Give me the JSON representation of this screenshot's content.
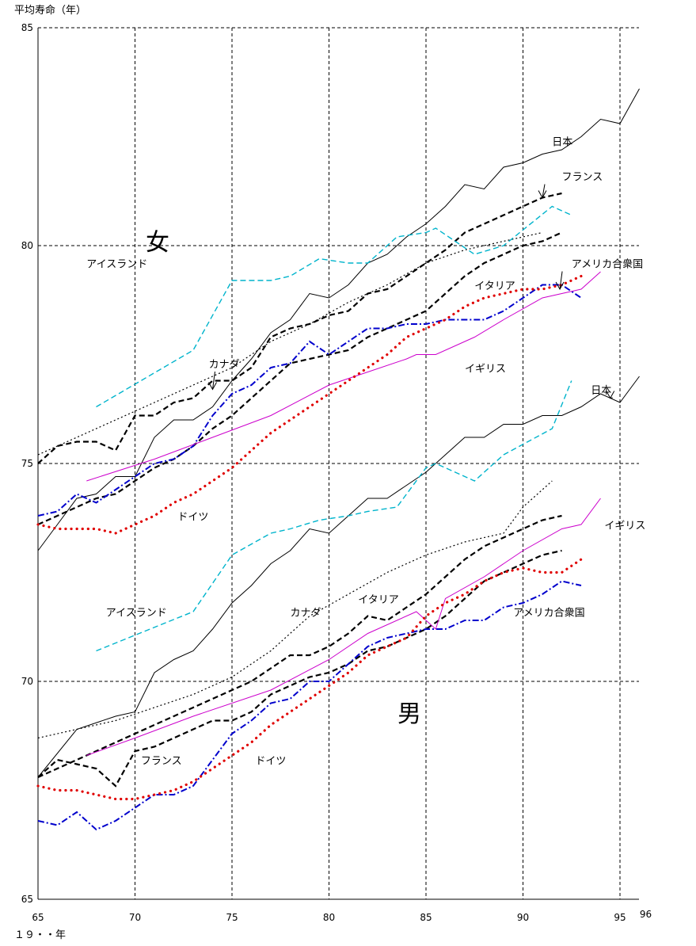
{
  "chart_data": {
    "type": "line",
    "ylabel": "平均寿命（年）",
    "xlabel": "１９・・年",
    "xlim": [
      65,
      96
    ],
    "ylim": [
      65,
      85
    ],
    "x_ticks": [
      "65",
      "70",
      "75",
      "80",
      "85",
      "90",
      "95",
      "96"
    ],
    "y_ticks": [
      "85",
      "80",
      "75",
      "70",
      "65"
    ],
    "group_labels": {
      "female": "女",
      "male": "男"
    },
    "grid": true,
    "colors": {
      "japan": "#000000",
      "france": "#000000",
      "italy": "#000000",
      "canada": "#000000",
      "usa": "#0000cc",
      "uk": "#cc00cc",
      "germany": "#e00000",
      "iceland": "#00b4cc"
    },
    "series": [
      {
        "name": "日本",
        "group": "female",
        "color_key": "japan",
        "dash": "solid",
        "x": [
          65,
          66,
          67,
          68,
          69,
          70,
          71,
          72,
          73,
          74,
          75,
          76,
          77,
          78,
          79,
          80,
          81,
          82,
          83,
          84,
          85,
          86,
          87,
          88,
          89,
          90,
          91,
          92,
          93,
          94,
          95,
          96
        ],
        "y": [
          73.0,
          73.6,
          74.2,
          74.3,
          74.7,
          74.7,
          75.6,
          76.0,
          76.0,
          76.3,
          76.9,
          77.4,
          78.0,
          78.3,
          78.9,
          78.8,
          79.1,
          79.6,
          79.8,
          80.2,
          80.5,
          80.9,
          81.4,
          81.3,
          81.8,
          81.9,
          82.1,
          82.2,
          82.5,
          82.9,
          82.8,
          83.6
        ]
      },
      {
        "name": "フランス",
        "group": "female",
        "color_key": "france",
        "dash": "heavy",
        "x": [
          65,
          66,
          67,
          68,
          69,
          70,
          71,
          72,
          73,
          74,
          75,
          76,
          77,
          78,
          79,
          80,
          81,
          82,
          83,
          84,
          85,
          86,
          87,
          88,
          89,
          90,
          91,
          92
        ],
        "y": [
          75.0,
          75.4,
          75.5,
          75.5,
          75.3,
          76.1,
          76.1,
          76.4,
          76.5,
          76.9,
          76.9,
          77.2,
          77.9,
          78.1,
          78.2,
          78.4,
          78.5,
          78.9,
          79.0,
          79.3,
          79.6,
          79.9,
          80.3,
          80.5,
          80.7,
          80.9,
          81.1,
          81.2
        ]
      },
      {
        "name": "イタリア",
        "group": "female",
        "color_key": "italy",
        "dash": "heavy",
        "x": [
          65,
          66,
          67,
          68,
          69,
          70,
          71,
          72,
          73,
          74,
          75,
          76,
          77,
          78,
          79,
          80,
          81,
          82,
          83,
          84,
          85,
          86,
          87,
          88,
          89,
          90,
          91,
          92
        ],
        "y": [
          73.6,
          73.8,
          74.0,
          74.2,
          74.3,
          74.6,
          74.9,
          75.1,
          75.4,
          75.8,
          76.1,
          76.5,
          76.9,
          77.3,
          77.4,
          77.5,
          77.6,
          77.9,
          78.1,
          78.3,
          78.5,
          78.9,
          79.3,
          79.6,
          79.8,
          80.0,
          80.1,
          80.3
        ]
      },
      {
        "name": "カナダ",
        "group": "female",
        "color_key": "canada",
        "dash": "dotted",
        "x": [
          65,
          67,
          69,
          71,
          73,
          75,
          77,
          79,
          81,
          83,
          85,
          87,
          89,
          91
        ],
        "y": [
          75.2,
          75.6,
          76.0,
          76.4,
          76.8,
          77.2,
          77.8,
          78.2,
          78.7,
          79.1,
          79.6,
          79.9,
          80.1,
          80.3
        ]
      },
      {
        "name": "アメリカ合衆国",
        "group": "female",
        "color_key": "usa",
        "dash": "dashdot",
        "x": [
          65,
          66,
          67,
          68,
          69,
          70,
          71,
          72,
          73,
          74,
          75,
          76,
          77,
          78,
          79,
          80,
          81,
          82,
          83,
          84,
          85,
          86,
          87,
          88,
          89,
          90,
          91,
          92,
          93
        ],
        "y": [
          73.8,
          73.9,
          74.3,
          74.1,
          74.4,
          74.7,
          75.0,
          75.1,
          75.4,
          76.1,
          76.6,
          76.8,
          77.2,
          77.3,
          77.8,
          77.5,
          77.8,
          78.1,
          78.1,
          78.2,
          78.2,
          78.3,
          78.3,
          78.3,
          78.5,
          78.8,
          79.1,
          79.1,
          78.8
        ]
      },
      {
        "name": "イギリス",
        "group": "female",
        "color_key": "uk",
        "dash": "solid",
        "x": [
          67.5,
          71,
          74,
          77,
          80,
          82,
          84,
          84.5,
          85.5,
          86.5,
          87.5,
          89,
          91,
          93,
          94
        ],
        "y": [
          74.6,
          75.1,
          75.6,
          76.1,
          76.8,
          77.1,
          77.4,
          77.5,
          77.5,
          77.7,
          77.9,
          78.3,
          78.8,
          79.0,
          79.4
        ]
      },
      {
        "name": "ドイツ",
        "group": "female",
        "color_key": "germany",
        "dash": "dotted-heavy",
        "x": [
          65,
          66,
          67,
          68,
          69,
          70,
          71,
          72,
          73,
          74,
          75,
          76,
          77,
          78,
          79,
          80,
          81,
          82,
          83,
          84,
          85,
          86,
          87,
          88,
          89,
          90,
          91,
          92,
          93
        ],
        "y": [
          73.6,
          73.5,
          73.5,
          73.5,
          73.4,
          73.6,
          73.8,
          74.1,
          74.3,
          74.6,
          74.9,
          75.3,
          75.7,
          76.0,
          76.3,
          76.6,
          76.9,
          77.2,
          77.5,
          77.9,
          78.1,
          78.3,
          78.6,
          78.8,
          78.9,
          79.0,
          79.0,
          79.1,
          79.3
        ]
      },
      {
        "name": "アイスランド",
        "group": "female",
        "color_key": "iceland",
        "dash": "dashed",
        "x": [
          68,
          73,
          75,
          77,
          78,
          79.5,
          81,
          82,
          83.5,
          85,
          85.5,
          87.5,
          89,
          91.5,
          92.5
        ],
        "y": [
          76.3,
          77.6,
          79.2,
          79.2,
          79.3,
          79.7,
          79.6,
          79.6,
          80.2,
          80.3,
          80.4,
          79.8,
          80.0,
          80.9,
          80.7
        ]
      },
      {
        "name": "日本",
        "group": "male",
        "color_key": "japan",
        "dash": "solid",
        "x": [
          65,
          67,
          69,
          70,
          71,
          72,
          73,
          74,
          75,
          76,
          77,
          78,
          79,
          80,
          81,
          82,
          83,
          84,
          85,
          86,
          87,
          88,
          89,
          90,
          91,
          92,
          93,
          94,
          95,
          96
        ],
        "y": [
          67.8,
          68.9,
          69.2,
          69.3,
          70.2,
          70.5,
          70.7,
          71.2,
          71.8,
          72.2,
          72.7,
          73.0,
          73.5,
          73.4,
          73.8,
          74.2,
          74.2,
          74.5,
          74.8,
          75.2,
          75.6,
          75.6,
          75.9,
          75.9,
          76.1,
          76.1,
          76.3,
          76.6,
          76.4,
          77.0
        ]
      },
      {
        "name": "フランス",
        "group": "male",
        "color_key": "france",
        "dash": "heavy",
        "x": [
          65,
          66,
          67,
          68,
          69,
          70,
          71,
          72,
          73,
          74,
          75,
          76,
          77,
          78,
          79,
          80,
          81,
          82,
          83,
          84,
          85,
          86,
          87,
          88,
          89,
          90,
          91,
          92
        ],
        "y": [
          67.8,
          68.2,
          68.1,
          68.0,
          67.6,
          68.4,
          68.5,
          68.7,
          68.9,
          69.1,
          69.1,
          69.3,
          69.7,
          69.9,
          70.1,
          70.2,
          70.4,
          70.7,
          70.8,
          71.0,
          71.2,
          71.5,
          71.9,
          72.3,
          72.5,
          72.7,
          72.9,
          73.0
        ]
      },
      {
        "name": "イタリア",
        "group": "male",
        "color_key": "italy",
        "dash": "heavy",
        "x": [
          65,
          66,
          67,
          68,
          69,
          70,
          71,
          72,
          73,
          74,
          75,
          76,
          77,
          78,
          79,
          80,
          81,
          82,
          83,
          84,
          85,
          86,
          87,
          88,
          89,
          90,
          91,
          92
        ],
        "y": [
          67.8,
          68.0,
          68.2,
          68.4,
          68.6,
          68.8,
          69.0,
          69.2,
          69.4,
          69.6,
          69.8,
          70.0,
          70.3,
          70.6,
          70.6,
          70.8,
          71.1,
          71.5,
          71.4,
          71.7,
          72.0,
          72.4,
          72.8,
          73.1,
          73.3,
          73.5,
          73.7,
          73.8
        ]
      },
      {
        "name": "カナダ",
        "group": "male",
        "color_key": "canada",
        "dash": "dotted",
        "x": [
          65,
          67,
          69,
          71,
          73,
          75,
          77,
          79,
          81,
          83,
          85,
          87,
          89,
          90,
          91.5
        ],
        "y": [
          68.7,
          68.9,
          69.1,
          69.4,
          69.7,
          70.1,
          70.7,
          71.5,
          72.0,
          72.5,
          72.9,
          73.2,
          73.4,
          74.0,
          74.6
        ]
      },
      {
        "name": "アメリカ合衆国",
        "group": "male",
        "color_key": "usa",
        "dash": "dashdot",
        "x": [
          65,
          66,
          67,
          68,
          69,
          70,
          71,
          72,
          73,
          74,
          75,
          76,
          77,
          78,
          79,
          80,
          81,
          82,
          83,
          84,
          85,
          86,
          87,
          88,
          89,
          90,
          91,
          92,
          93
        ],
        "y": [
          66.8,
          66.7,
          67.0,
          66.6,
          66.8,
          67.1,
          67.4,
          67.4,
          67.6,
          68.2,
          68.8,
          69.1,
          69.5,
          69.6,
          70.0,
          70.0,
          70.4,
          70.8,
          71.0,
          71.1,
          71.2,
          71.2,
          71.4,
          71.4,
          71.7,
          71.8,
          72.0,
          72.3,
          72.2
        ]
      },
      {
        "name": "イギリス",
        "group": "male",
        "color_key": "uk",
        "dash": "solid",
        "x": [
          67.5,
          70,
          73,
          77,
          80,
          82,
          84.5,
          85.5,
          86,
          88,
          90,
          92,
          93,
          94
        ],
        "y": [
          68.3,
          68.7,
          69.2,
          69.8,
          70.5,
          71.1,
          71.6,
          71.2,
          71.9,
          72.4,
          73.0,
          73.5,
          73.6,
          74.2
        ]
      },
      {
        "name": "ドイツ",
        "group": "male",
        "color_key": "germany",
        "dash": "dotted-heavy",
        "x": [
          65,
          66,
          67,
          68,
          69,
          70,
          71,
          72,
          73,
          74,
          75,
          76,
          77,
          78,
          79,
          80,
          81,
          82,
          83,
          84,
          85,
          86,
          87,
          88,
          89,
          90,
          91,
          92,
          93
        ],
        "y": [
          67.6,
          67.5,
          67.5,
          67.4,
          67.3,
          67.3,
          67.4,
          67.5,
          67.7,
          68.0,
          68.3,
          68.6,
          69.0,
          69.3,
          69.6,
          69.9,
          70.2,
          70.6,
          70.8,
          71.0,
          71.5,
          71.8,
          72.0,
          72.3,
          72.5,
          72.6,
          72.5,
          72.5,
          72.8
        ]
      },
      {
        "name": "アイスランド",
        "group": "male",
        "color_key": "iceland",
        "dash": "dashed",
        "x": [
          68,
          73,
          75,
          77,
          78,
          79.5,
          81,
          82,
          83.5,
          85,
          85.5,
          87.5,
          89,
          91.5,
          92.5
        ],
        "y": [
          70.7,
          71.6,
          72.9,
          73.4,
          73.5,
          73.7,
          73.8,
          73.9,
          74.0,
          74.9,
          75.0,
          74.6,
          75.2,
          75.8,
          76.9
        ]
      }
    ],
    "annotations": [
      {
        "text": "日本",
        "x": 91.5,
        "y": 82.3,
        "group": "female"
      },
      {
        "text": "フランス",
        "x": 92,
        "y": 81.5,
        "group": "female",
        "arrow_to": [
          91,
          81.1
        ]
      },
      {
        "text": "アイスランド",
        "x": 67.5,
        "y": 79.5,
        "group": "female"
      },
      {
        "text": "アメリカ合衆国",
        "x": 92.5,
        "y": 79.5,
        "group": "female",
        "arrow_to": [
          91.9,
          79.0
        ]
      },
      {
        "text": "イタリア",
        "x": 87.5,
        "y": 79.0,
        "group": "female"
      },
      {
        "text": "カナダ",
        "x": 73.8,
        "y": 77.2,
        "group": "female",
        "arrow_to": [
          74.0,
          76.7
        ]
      },
      {
        "text": "イギリス",
        "x": 87,
        "y": 77.1,
        "group": "female"
      },
      {
        "text": "ドイツ",
        "x": 72.2,
        "y": 73.7,
        "group": "female"
      },
      {
        "text": "日本",
        "x": 93.5,
        "y": 76.6,
        "group": "male",
        "arrow_to": [
          94.5,
          76.5
        ]
      },
      {
        "text": "イギリス",
        "x": 94.2,
        "y": 73.5,
        "group": "male"
      },
      {
        "text": "アイスランド",
        "x": 68.5,
        "y": 71.5,
        "group": "male"
      },
      {
        "text": "カナダ",
        "x": 78.0,
        "y": 71.5,
        "group": "male"
      },
      {
        "text": "イタリア",
        "x": 81.5,
        "y": 71.8,
        "group": "male"
      },
      {
        "text": "アメリカ合衆国",
        "x": 89.5,
        "y": 71.5,
        "group": "male"
      },
      {
        "text": "フランス",
        "x": 70.3,
        "y": 68.1,
        "group": "male"
      },
      {
        "text": "ドイツ",
        "x": 76.2,
        "y": 68.1,
        "group": "male"
      }
    ]
  }
}
